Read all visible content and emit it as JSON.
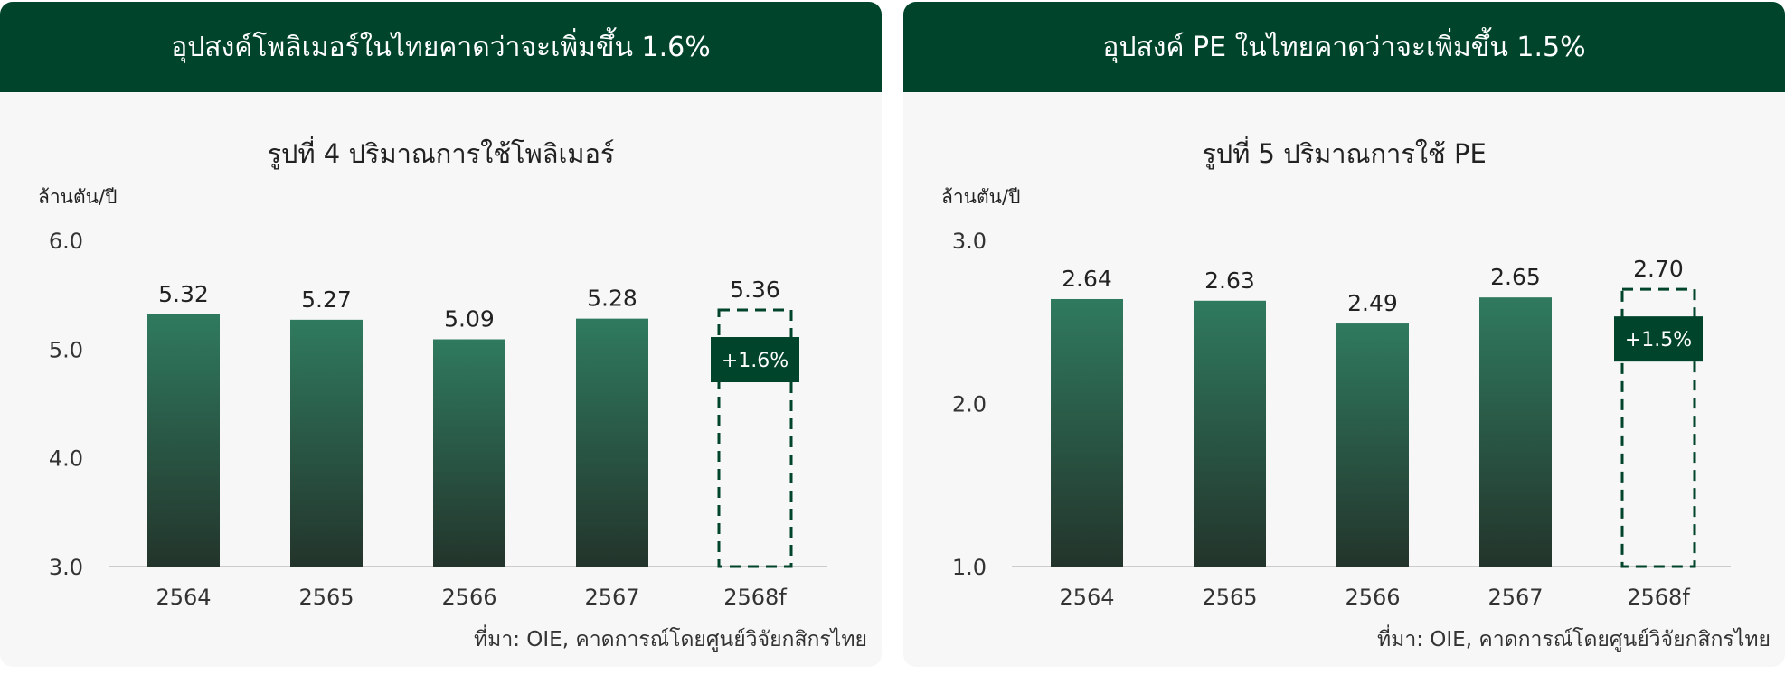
{
  "colors": {
    "banner": "#00452b",
    "bar_top": "#2f7a5f",
    "bar_bottom": "#23342b",
    "forecast_outline": "#00452b",
    "badge": "#00452b",
    "background": "#f7f7f7"
  },
  "source_note": "ที่มา: OIE, คาดการณ์โดยศูนย์วิจัยกสิกรไทย",
  "chart_data": [
    {
      "type": "bar",
      "banner": "อุปสงค์โพลิเมอร์ในไทยคาดว่าจะเพิ่มขึ้น 1.6%",
      "title": "รูปที่ 4 ปริมาณการใช้โพลิเมอร์",
      "ylabel": "ล้านตัน/ปี",
      "categories": [
        "2564",
        "2565",
        "2566",
        "2567",
        "2568f"
      ],
      "values": [
        5.32,
        5.27,
        5.09,
        5.28,
        5.36
      ],
      "value_labels": [
        "5.32",
        "5.27",
        "5.09",
        "5.28",
        "5.36"
      ],
      "ylim": [
        3.0,
        6.0
      ],
      "yticks": [
        "3.0",
        "4.0",
        "5.0",
        "6.0"
      ],
      "forecast_index": 4,
      "forecast_badge": "+1.6%",
      "grid": false
    },
    {
      "type": "bar",
      "banner": "อุปสงค์ PE ในไทยคาดว่าจะเพิ่มขึ้น 1.5%",
      "title": "รูปที่ 5 ปริมาณการใช้ PE",
      "ylabel": "ล้านตัน/ปี",
      "categories": [
        "2564",
        "2565",
        "2566",
        "2567",
        "2568f"
      ],
      "values": [
        2.64,
        2.63,
        2.49,
        2.65,
        2.7
      ],
      "value_labels": [
        "2.64",
        "2.63",
        "2.49",
        "2.65",
        "2.70"
      ],
      "ylim": [
        1.0,
        3.0
      ],
      "yticks": [
        "1.0",
        "2.0",
        "3.0"
      ],
      "forecast_index": 4,
      "forecast_badge": "+1.5%",
      "grid": false
    }
  ]
}
